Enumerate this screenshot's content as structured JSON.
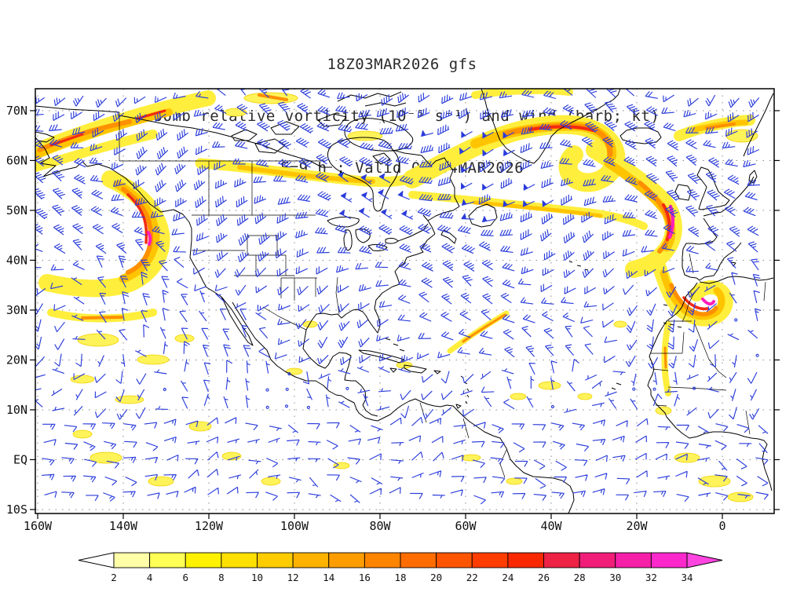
{
  "titles": {
    "line1": "18Z03MAR2026 gfs",
    "line2": "500mb relative vorticity (10⁻⁵ s⁻¹) and wind (barb; kt)",
    "line3": "F=9 h ; Valid 03Z04MAR2026"
  },
  "chart_data": {
    "type": "map",
    "subtype": "filled-contour-with-wind-barbs",
    "model": "gfs",
    "model_run": "18Z03MAR2026",
    "level": "500mb",
    "field": "relative vorticity",
    "field_units": "10⁻⁵ s⁻¹",
    "wind_units": "kt",
    "forecast_hour": "F=9 h",
    "valid_time": "03Z04MAR2026",
    "axes": {
      "lat_ticks": [
        "70N",
        "60N",
        "50N",
        "40N",
        "30N",
        "20N",
        "10N",
        "EQ",
        "10S"
      ],
      "lon_ticks": [
        "160W",
        "140W",
        "120W",
        "100W",
        "80W",
        "60W",
        "40W",
        "20W",
        "0"
      ],
      "grid": "dashed"
    },
    "colorbar": {
      "tick_labels": [
        "2",
        "4",
        "6",
        "8",
        "10",
        "12",
        "14",
        "16",
        "18",
        "20",
        "22",
        "24",
        "26",
        "28",
        "30",
        "32",
        "34"
      ],
      "segment_colors": [
        "#ffffa8",
        "#ffff55",
        "#fff200",
        "#ffe000",
        "#ffcc00",
        "#ffb300",
        "#ff9d00",
        "#ff8400",
        "#ff6d00",
        "#ff5500",
        "#ff3d00",
        "#fa2800",
        "#ee2244",
        "#f01e78",
        "#f620a8",
        "#fc28cc"
      ],
      "under_arrow_color": "#ffffff",
      "over_arrow_color": "#ff44e0"
    },
    "style": {
      "barb_color": "#2a3cdb",
      "coast_color": "#000000",
      "grid_color": "#8a8a8a",
      "background": "#ffffff",
      "title_color": "#2b2b2b"
    }
  }
}
